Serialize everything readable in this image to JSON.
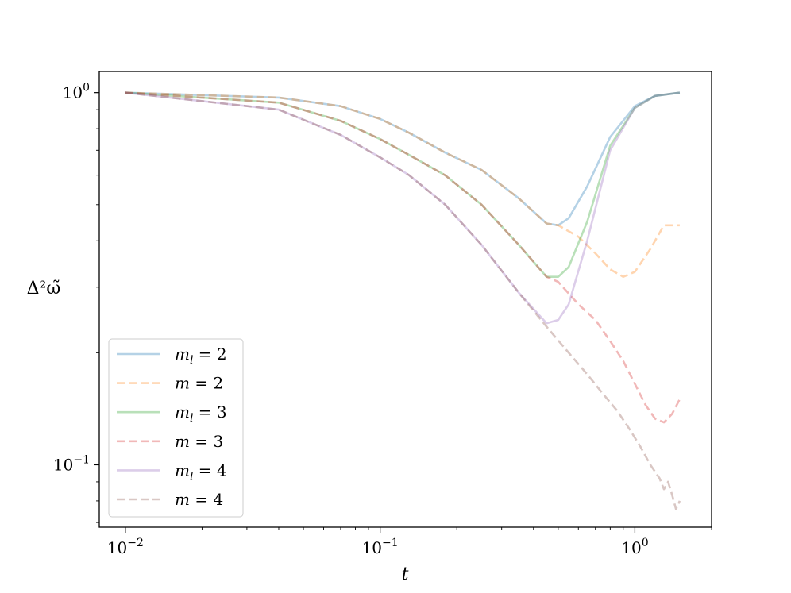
{
  "chart_data": {
    "type": "line",
    "xscale": "log",
    "yscale": "log",
    "xlim": [
      0.0079,
      2.0
    ],
    "ylim": [
      0.068,
      1.14
    ],
    "xlabel": "t",
    "ylabel": "Δ²ω̃",
    "xticks": [
      {
        "value": 0.01,
        "base": "10",
        "exp": "−2"
      },
      {
        "value": 0.1,
        "base": "10",
        "exp": "−1"
      },
      {
        "value": 1,
        "base": "10",
        "exp": "0"
      }
    ],
    "yticks": [
      {
        "value": 0.1,
        "base": "10",
        "exp": "−1"
      },
      {
        "value": 1,
        "base": "10",
        "exp": "0"
      }
    ],
    "grid": false,
    "legend_position": "lower-left",
    "series": [
      {
        "name": "m_l = 2",
        "math": "m",
        "sub": "l",
        "rhs": " = 2",
        "color": "#1f77b4",
        "dash": "solid",
        "x": [
          0.01,
          0.04,
          0.07,
          0.1,
          0.13,
          0.18,
          0.25,
          0.35,
          0.45,
          0.5,
          0.55,
          0.65,
          0.8,
          1.0,
          1.2,
          1.5
        ],
        "y": [
          1.0,
          0.97,
          0.92,
          0.85,
          0.78,
          0.69,
          0.62,
          0.52,
          0.445,
          0.44,
          0.46,
          0.56,
          0.76,
          0.92,
          0.98,
          1.0
        ]
      },
      {
        "name": "m = 2",
        "math": "m",
        "sub": "",
        "rhs": " = 2",
        "color": "#ff7f0e",
        "dash": "dashed",
        "x": [
          0.01,
          0.04,
          0.07,
          0.1,
          0.13,
          0.18,
          0.25,
          0.35,
          0.45,
          0.5,
          0.6,
          0.7,
          0.8,
          0.9,
          1.0,
          1.15,
          1.3,
          1.5
        ],
        "y": [
          1.0,
          0.97,
          0.92,
          0.85,
          0.78,
          0.69,
          0.62,
          0.52,
          0.445,
          0.44,
          0.41,
          0.37,
          0.335,
          0.32,
          0.33,
          0.38,
          0.44,
          0.44
        ]
      },
      {
        "name": "m_l = 3",
        "math": "m",
        "sub": "l",
        "rhs": " = 3",
        "color": "#2ca02c",
        "dash": "solid",
        "x": [
          0.01,
          0.04,
          0.07,
          0.1,
          0.13,
          0.18,
          0.25,
          0.35,
          0.45,
          0.5,
          0.55,
          0.65,
          0.8,
          1.0,
          1.2,
          1.5
        ],
        "y": [
          1.0,
          0.94,
          0.84,
          0.75,
          0.68,
          0.6,
          0.5,
          0.39,
          0.32,
          0.32,
          0.34,
          0.45,
          0.72,
          0.91,
          0.98,
          1.0
        ]
      },
      {
        "name": "m = 3",
        "math": "m",
        "sub": "",
        "rhs": " = 3",
        "color": "#d62728",
        "dash": "dashed",
        "x": [
          0.01,
          0.04,
          0.07,
          0.1,
          0.13,
          0.18,
          0.25,
          0.35,
          0.45,
          0.5,
          0.6,
          0.7,
          0.8,
          0.9,
          1.0,
          1.1,
          1.2,
          1.3,
          1.4,
          1.5
        ],
        "y": [
          1.0,
          0.94,
          0.84,
          0.75,
          0.68,
          0.6,
          0.5,
          0.39,
          0.32,
          0.31,
          0.27,
          0.245,
          0.215,
          0.19,
          0.165,
          0.145,
          0.133,
          0.13,
          0.137,
          0.15
        ]
      },
      {
        "name": "m_l = 4",
        "math": "m",
        "sub": "l",
        "rhs": " = 4",
        "color": "#9467bd",
        "dash": "solid",
        "x": [
          0.01,
          0.04,
          0.07,
          0.1,
          0.13,
          0.18,
          0.25,
          0.35,
          0.45,
          0.5,
          0.55,
          0.65,
          0.8,
          1.0,
          1.2,
          1.5
        ],
        "y": [
          1.0,
          0.9,
          0.77,
          0.67,
          0.6,
          0.5,
          0.39,
          0.29,
          0.24,
          0.245,
          0.27,
          0.4,
          0.7,
          0.91,
          0.98,
          1.0
        ]
      },
      {
        "name": "m = 4",
        "math": "m",
        "sub": "",
        "rhs": " = 4",
        "color": "#8c564b",
        "dash": "dashed",
        "x": [
          0.01,
          0.04,
          0.07,
          0.1,
          0.13,
          0.18,
          0.25,
          0.35,
          0.45,
          0.55,
          0.65,
          0.75,
          0.85,
          0.95,
          1.05,
          1.15,
          1.25,
          1.3,
          1.35,
          1.4,
          1.45,
          1.5
        ],
        "y": [
          1.0,
          0.9,
          0.77,
          0.67,
          0.6,
          0.5,
          0.39,
          0.29,
          0.235,
          0.2,
          0.175,
          0.155,
          0.14,
          0.125,
          0.112,
          0.1,
          0.092,
          0.086,
          0.09,
          0.083,
          0.076,
          0.08
        ]
      }
    ]
  }
}
